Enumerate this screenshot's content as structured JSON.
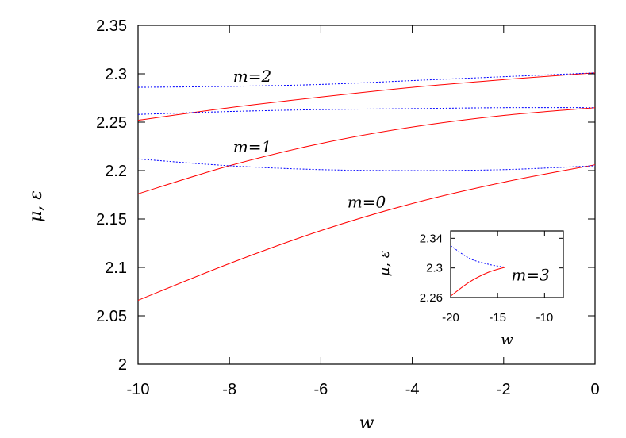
{
  "chart_data": [
    {
      "type": "line",
      "xlabel": "w",
      "ylabel": "μ, ε",
      "xlim": [
        -10,
        0
      ],
      "ylim": [
        2.0,
        2.35
      ],
      "xticks": [
        "-10",
        "-8",
        "-6",
        "-4",
        "-2",
        "0"
      ],
      "yticks": [
        "2",
        "2.05",
        "2.1",
        "2.15",
        "2.2",
        "2.25",
        "2.3",
        "2.35"
      ],
      "grid": false,
      "colors": {
        "solid": "#ff0000",
        "dashed": "#0000ff"
      },
      "annotations": [
        {
          "text": "m=2",
          "x": -7.5,
          "y": 2.292
        },
        {
          "text": "m=1",
          "x": -7.5,
          "y": 2.219
        },
        {
          "text": "m=0",
          "x": -5.0,
          "y": 2.162
        }
      ],
      "series": [
        {
          "style": "solid",
          "color": "#ff0000",
          "x": [
            -10,
            -8,
            -6,
            -4,
            -2,
            0
          ],
          "y": [
            2.066,
            2.104,
            2.138,
            2.166,
            2.188,
            2.206
          ]
        },
        {
          "style": "solid",
          "color": "#ff0000",
          "x": [
            -10,
            -8,
            -6,
            -4,
            -2,
            0
          ],
          "y": [
            2.176,
            2.205,
            2.228,
            2.245,
            2.257,
            2.265
          ]
        },
        {
          "style": "solid",
          "color": "#ff0000",
          "x": [
            -10,
            -8,
            -6,
            -4,
            -2,
            0
          ],
          "y": [
            2.252,
            2.265,
            2.276,
            2.286,
            2.294,
            2.301
          ]
        },
        {
          "style": "dashed",
          "color": "#0000ff",
          "x": [
            -10,
            -8,
            -6,
            -4,
            -2,
            0
          ],
          "y": [
            2.212,
            2.205,
            2.201,
            2.2,
            2.201,
            2.205
          ]
        },
        {
          "style": "dashed",
          "color": "#0000ff",
          "x": [
            -10,
            -8,
            -6,
            -4,
            -2,
            0
          ],
          "y": [
            2.258,
            2.261,
            2.263,
            2.264,
            2.265,
            2.265
          ]
        },
        {
          "style": "dashed",
          "color": "#0000ff",
          "x": [
            -10,
            -8,
            -6,
            -4,
            -2,
            0
          ],
          "y": [
            2.286,
            2.287,
            2.289,
            2.293,
            2.297,
            2.301
          ]
        }
      ]
    },
    {
      "type": "line",
      "xlabel": "w",
      "ylabel": "μ, ε",
      "xlim": [
        -20,
        -8
      ],
      "ylim": [
        2.26,
        2.35
      ],
      "xticks": [
        "-20",
        "-15",
        "-10"
      ],
      "yticks": [
        "2.26",
        "2.3",
        "2.34"
      ],
      "grid": false,
      "annotations": [
        {
          "text": "m=3",
          "x": -11.5,
          "y": 2.283
        }
      ],
      "series": [
        {
          "style": "solid",
          "color": "#ff0000",
          "x": [
            -20,
            -18,
            -16,
            -14.2
          ],
          "y": [
            2.262,
            2.281,
            2.294,
            2.301
          ]
        },
        {
          "style": "dashed",
          "color": "#0000ff",
          "x": [
            -20,
            -18,
            -16,
            -14.2
          ],
          "y": [
            2.33,
            2.313,
            2.305,
            2.301
          ]
        }
      ]
    }
  ]
}
